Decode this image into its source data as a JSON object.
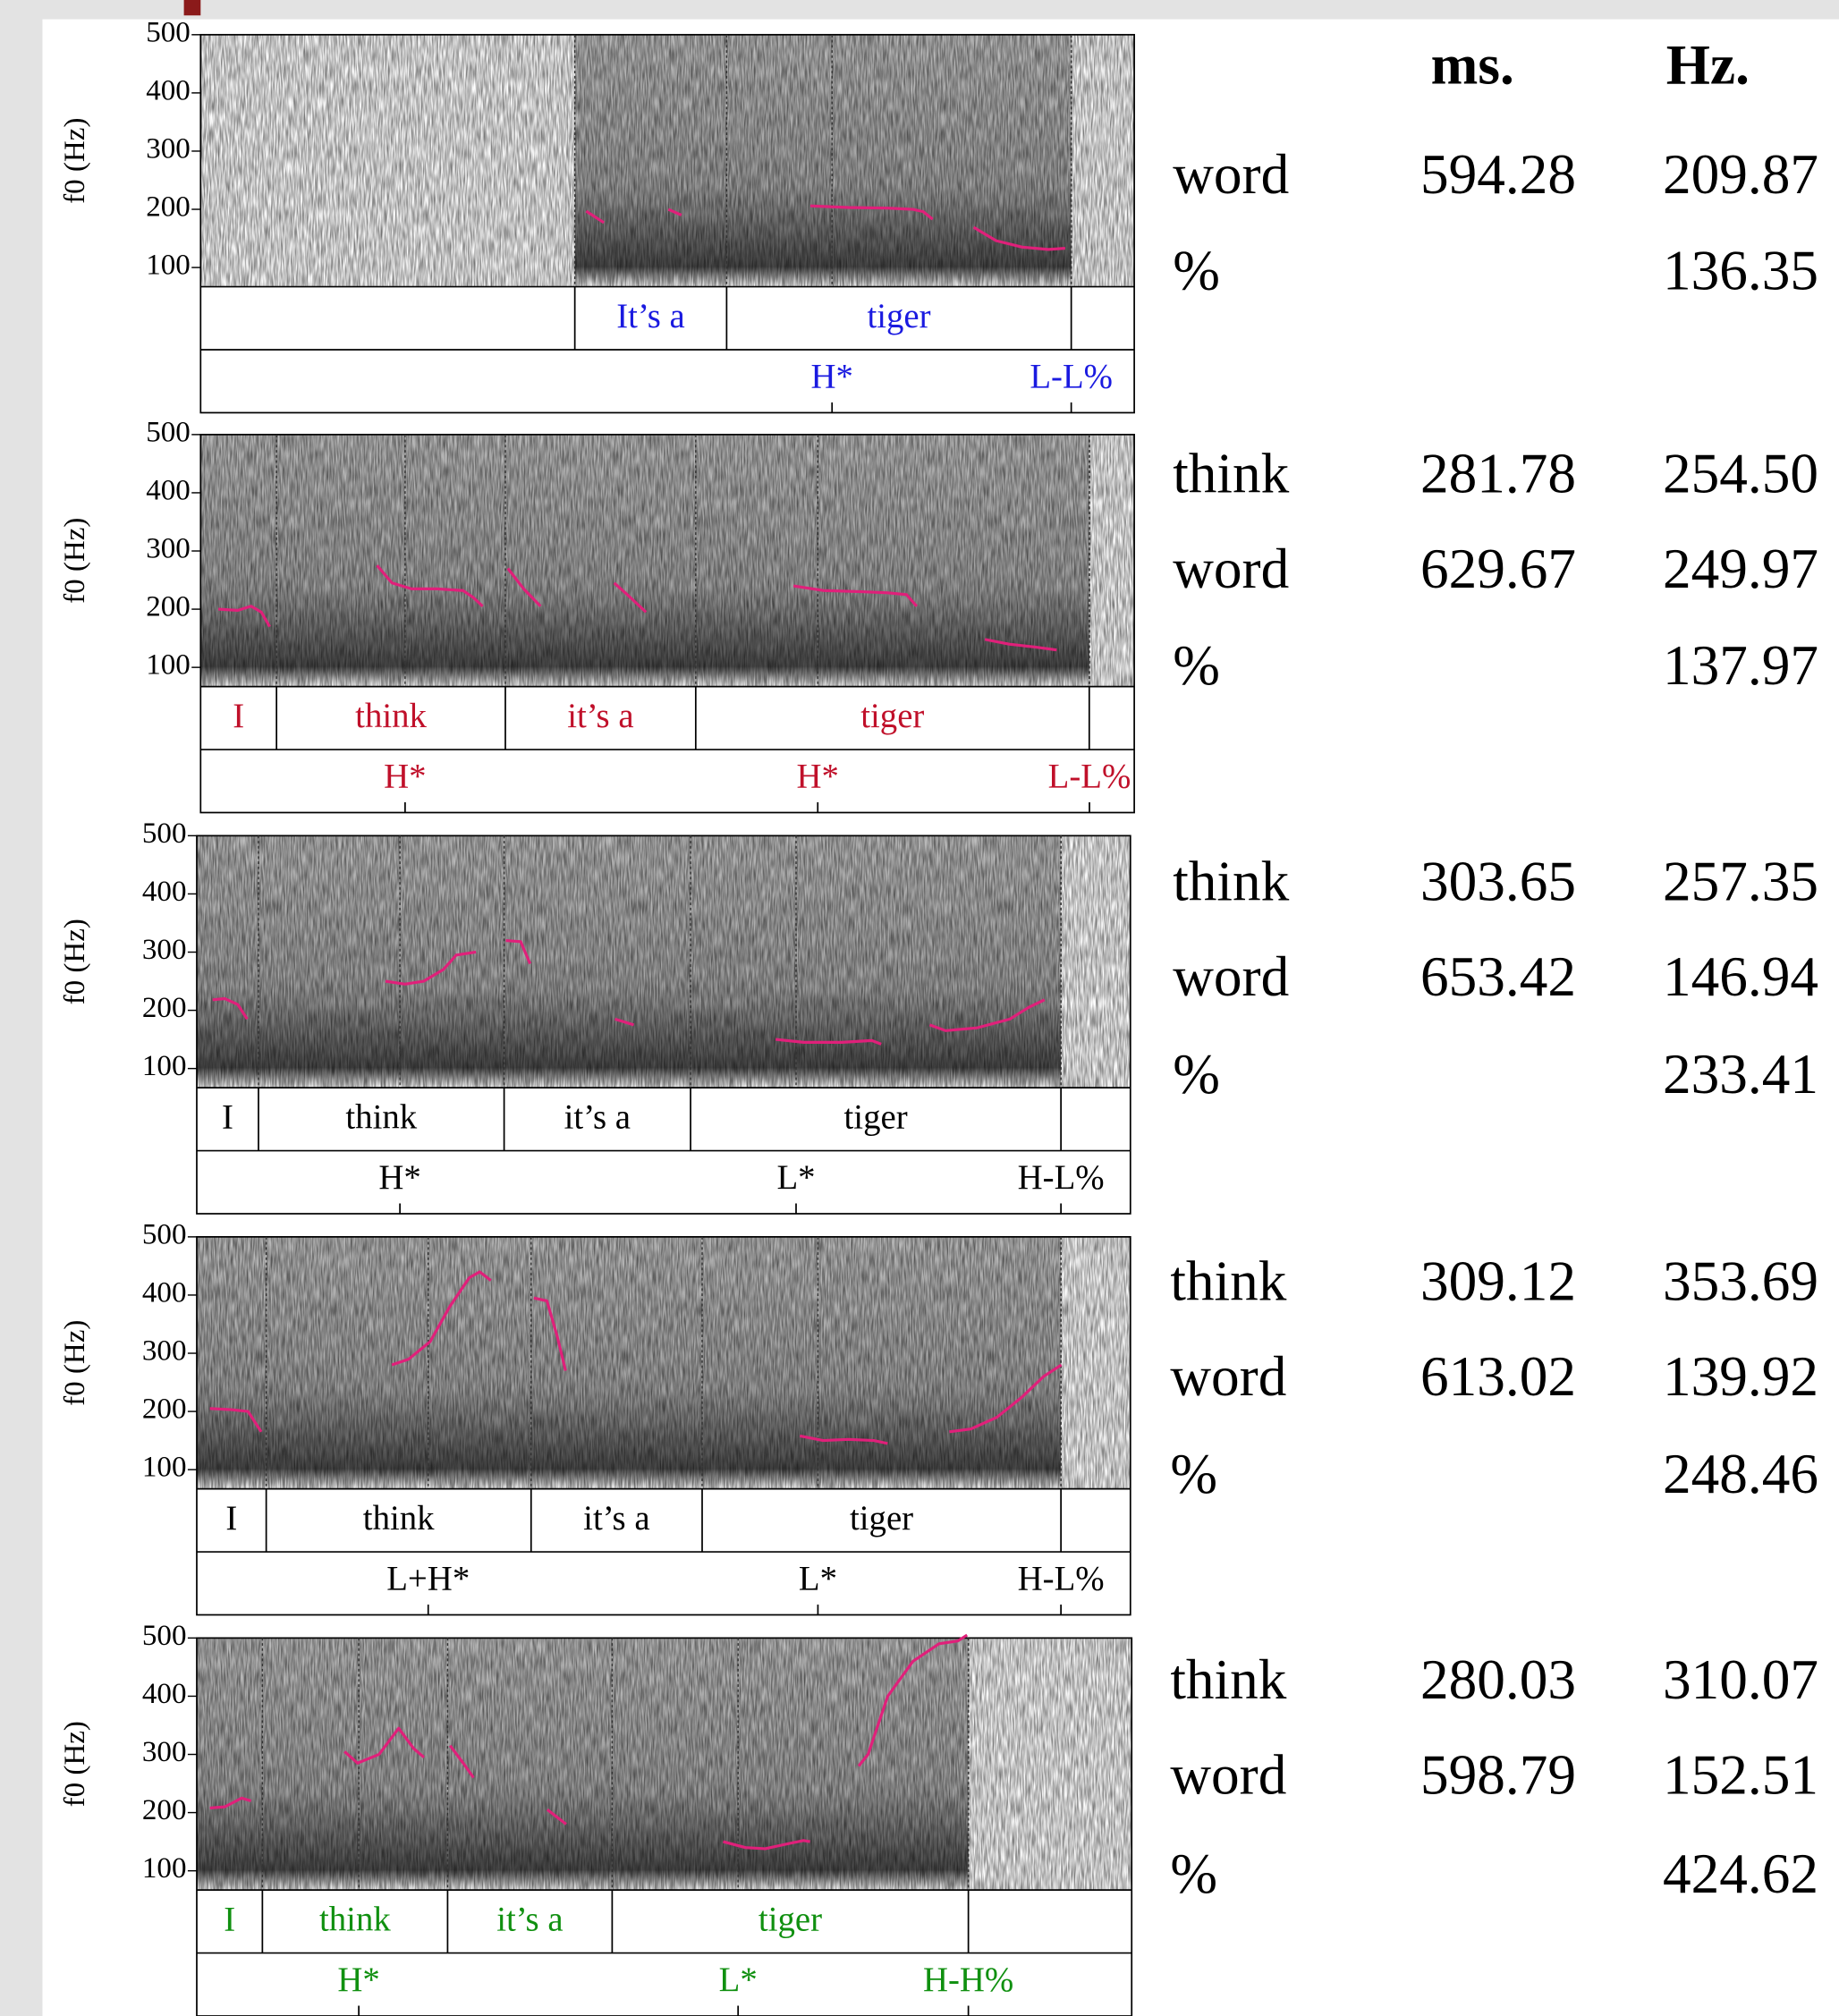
{
  "chart_data": [
    {
      "type": "line",
      "ylabel": "f0 (Hz)",
      "ylim": [
        67,
        500
      ],
      "yticks": [
        100,
        200,
        300,
        400,
        500
      ],
      "xlim": [
        0,
        1
      ],
      "color": "#e0207a",
      "tier_color": "#1a1ae0",
      "x": [
        0.413,
        0.432,
        null,
        0.501,
        0.515,
        null,
        0.653,
        0.694,
        0.736,
        0.763,
        0.774,
        0.784,
        null,
        0.828,
        0.852,
        0.88,
        0.908,
        0.926
      ],
      "values": [
        197,
        177,
        null,
        200,
        190,
        null,
        206,
        203,
        202,
        200,
        196,
        183,
        null,
        169,
        146,
        135,
        131,
        133
      ],
      "word_tier": {
        "labels": [
          null,
          "It’s a",
          "tiger",
          null
        ],
        "bounds": [
          0,
          0.4008,
          0.5634,
          0.9325,
          1
        ]
      },
      "tone_tier": {
        "labels": [
          "H*",
          "L-L%"
        ],
        "x": [
          0.6763,
          0.9325
        ]
      }
    },
    {
      "type": "line",
      "ylabel": "f0 (Hz)",
      "ylim": [
        67,
        500
      ],
      "yticks": [
        100,
        200,
        300,
        400,
        500
      ],
      "xlim": [
        0,
        1
      ],
      "color": "#e0207a",
      "tier_color": "#c0102a",
      "x": [
        0.019,
        0.04,
        0.054,
        0.065,
        0.074,
        null,
        0.189,
        0.205,
        0.226,
        0.253,
        0.281,
        0.292,
        0.302,
        null,
        0.329,
        0.346,
        0.364,
        null,
        0.443,
        0.457,
        0.477,
        null,
        0.635,
        0.667,
        0.708,
        0.736,
        0.756,
        0.767,
        null,
        0.84,
        0.866,
        0.893,
        0.917
      ],
      "values": [
        200,
        198,
        205,
        195,
        170,
        null,
        275,
        245,
        235,
        235,
        232,
        220,
        205,
        null,
        270,
        235,
        205,
        null,
        245,
        225,
        195,
        null,
        240,
        232,
        230,
        228,
        225,
        205,
        null,
        148,
        140,
        135,
        130
      ],
      "word_tier": {
        "labels": [
          "I",
          "think",
          "it’s a",
          "tiger",
          null
        ],
        "bounds": [
          0,
          0.0813,
          0.3264,
          0.5303,
          0.9518,
          1
        ]
      },
      "tone_tier": {
        "labels": [
          "H*",
          "H*",
          "L-L%"
        ],
        "x": [
          0.219,
          0.661,
          0.952
        ]
      }
    },
    {
      "type": "line",
      "ylabel": "f0 (Hz)",
      "ylim": [
        67,
        500
      ],
      "yticks": [
        100,
        200,
        300,
        400,
        500
      ],
      "xlim": [
        0,
        1
      ],
      "color": "#e0207a",
      "tier_color": "#000000",
      "x": [
        0.017,
        0.03,
        0.044,
        0.054,
        null,
        0.202,
        0.223,
        0.243,
        0.264,
        0.278,
        0.299,
        null,
        0.331,
        0.347,
        0.357,
        null,
        0.448,
        0.468,
        null,
        0.62,
        0.65,
        0.691,
        0.723,
        0.733,
        null,
        0.785,
        0.802,
        0.836,
        0.871,
        0.891,
        0.908
      ],
      "values": [
        218,
        220,
        210,
        185,
        null,
        250,
        245,
        250,
        270,
        295,
        300,
        null,
        320,
        318,
        280,
        null,
        185,
        175,
        null,
        150,
        145,
        145,
        148,
        142,
        null,
        175,
        165,
        170,
        185,
        205,
        218
      ],
      "word_tier": {
        "labels": [
          "I",
          "think",
          "it’s a",
          "tiger",
          null
        ],
        "bounds": [
          0,
          0.0661,
          0.3292,
          0.5289,
          0.9256,
          1
        ]
      },
      "tone_tier": {
        "labels": [
          "H*",
          "L*",
          "H-L%"
        ],
        "x": [
          0.2176,
          0.6419,
          0.9256
        ]
      }
    },
    {
      "type": "line",
      "ylabel": "f0 (Hz)",
      "ylim": [
        67,
        500
      ],
      "yticks": [
        100,
        200,
        300,
        400,
        500
      ],
      "xlim": [
        0,
        1
      ],
      "color": "#e0207a",
      "tier_color": "#000000",
      "x": [
        0.014,
        0.037,
        0.055,
        0.069,
        null,
        0.209,
        0.227,
        0.25,
        0.271,
        0.292,
        0.303,
        0.315,
        null,
        0.361,
        0.375,
        0.386,
        0.395,
        null,
        0.646,
        0.671,
        0.698,
        0.725,
        0.74,
        null,
        0.806,
        0.829,
        0.857,
        0.884,
        0.907,
        0.926
      ],
      "values": [
        205,
        203,
        200,
        165,
        null,
        280,
        290,
        320,
        380,
        430,
        440,
        425,
        null,
        395,
        390,
        330,
        270,
        null,
        158,
        150,
        152,
        150,
        145,
        null,
        165,
        170,
        190,
        225,
        260,
        280
      ],
      "word_tier": {
        "labels": [
          "I",
          "think",
          "it’s a",
          "tiger",
          null
        ],
        "bounds": [
          0,
          0.0744,
          0.3581,
          0.5413,
          0.9256,
          1
        ]
      },
      "tone_tier": {
        "labels": [
          "L+H*",
          "L*",
          "H-L%"
        ],
        "x": [
          0.2479,
          0.6653,
          0.9256
        ]
      }
    },
    {
      "type": "line",
      "ylabel": "f0 (Hz)",
      "ylim": [
        67,
        500
      ],
      "yticks": [
        100,
        200,
        300,
        400,
        500
      ],
      "xlim": [
        0,
        1
      ],
      "color": "#e0207a",
      "tier_color": "#109010",
      "x": [
        0.014,
        0.03,
        0.048,
        0.058,
        null,
        0.158,
        0.172,
        0.195,
        0.216,
        0.232,
        0.243,
        null,
        0.271,
        0.285,
        0.296,
        null,
        0.375,
        0.395,
        null,
        0.563,
        0.587,
        0.608,
        0.628,
        0.649,
        0.656,
        null,
        0.708,
        0.718,
        0.739,
        0.766,
        0.794,
        0.814,
        0.824
      ],
      "values": [
        208,
        210,
        225,
        220,
        null,
        305,
        285,
        300,
        345,
        310,
        295,
        null,
        315,
        285,
        260,
        null,
        205,
        180,
        null,
        150,
        140,
        138,
        145,
        152,
        150,
        null,
        280,
        300,
        400,
        460,
        490,
        495,
        505
      ],
      "word_tier": {
        "labels": [
          "I",
          "think",
          "it’s a",
          "tiger",
          null
        ],
        "bounds": [
          0,
          0.0702,
          0.2683,
          0.4443,
          0.8253,
          1
        ]
      },
      "tone_tier": {
        "labels": [
          "H*",
          "L*",
          "H-H%"
        ],
        "x": [
          0.1733,
          0.579,
          0.8253
        ]
      }
    }
  ],
  "table": {
    "header": [
      "ms.",
      "Hz."
    ],
    "groups": [
      [
        [
          "word",
          "594.28",
          "209.87"
        ],
        [
          "%",
          null,
          "136.35"
        ]
      ],
      [
        [
          "think",
          "281.78",
          "254.50"
        ],
        [
          "word",
          "629.67",
          "249.97"
        ],
        [
          "%",
          null,
          "137.97"
        ]
      ],
      [
        [
          "think",
          "303.65",
          "257.35"
        ],
        [
          "word",
          "653.42",
          "146.94"
        ],
        [
          "%",
          null,
          "233.41"
        ]
      ],
      [
        [
          "think",
          "309.12",
          "353.69"
        ],
        [
          "word",
          "613.02",
          "139.92"
        ],
        [
          "%",
          null,
          "248.46"
        ]
      ],
      [
        [
          "think",
          "280.03",
          "310.07"
        ],
        [
          "word",
          "598.79",
          "152.51"
        ],
        [
          "%",
          null,
          "424.62"
        ]
      ]
    ]
  }
}
